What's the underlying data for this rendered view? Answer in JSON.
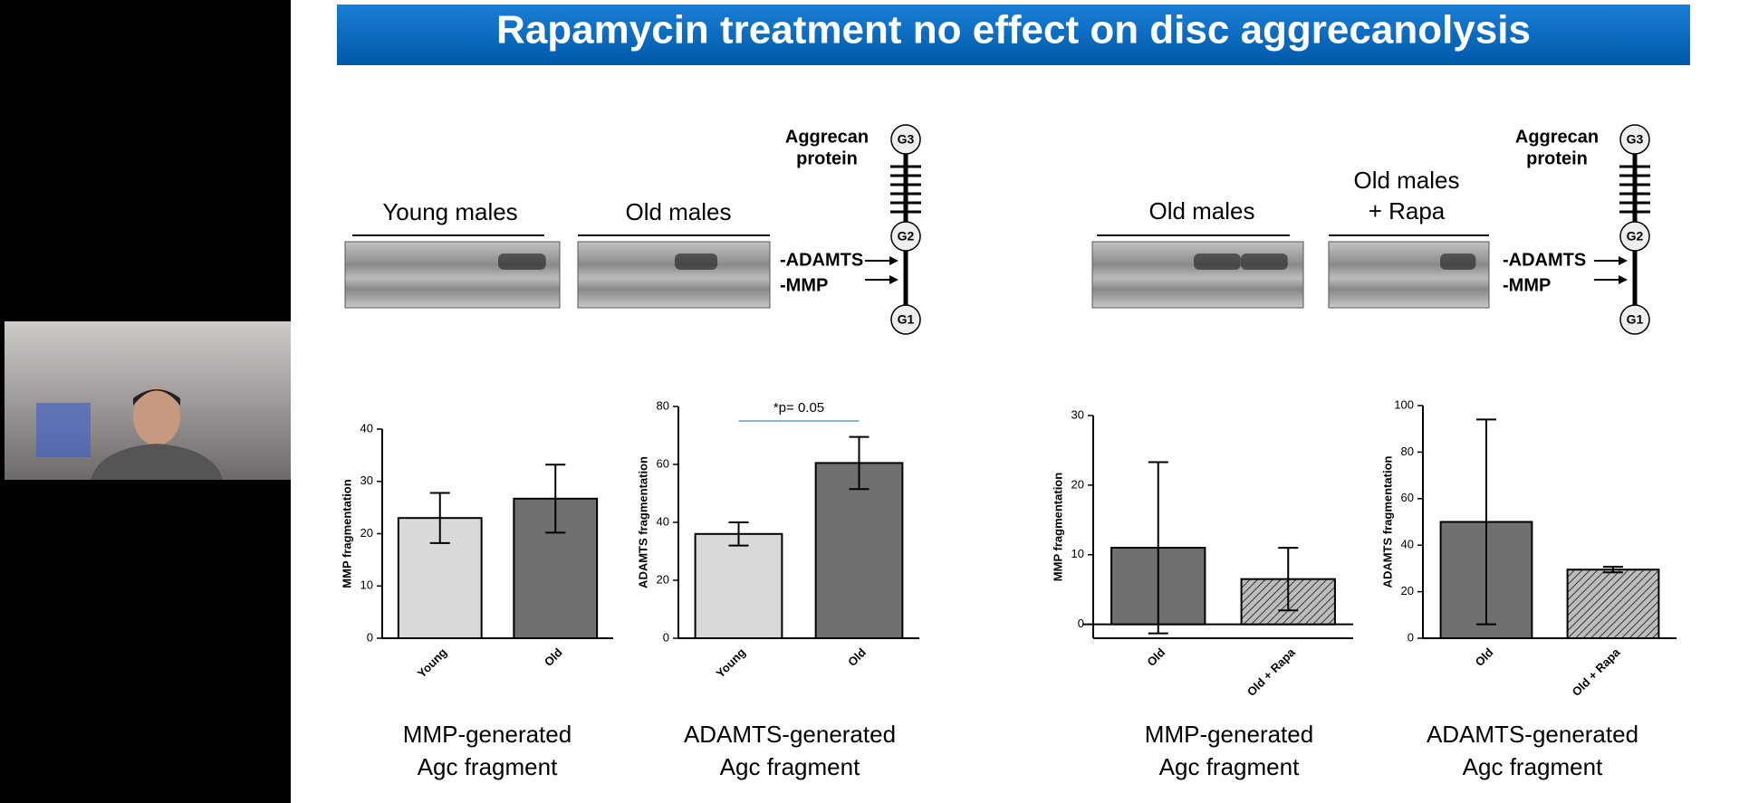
{
  "title": "Rapamycin treatment no effect on disc aggrecanolysis",
  "left_panel": {
    "groups": [
      "Young males",
      "Old males"
    ],
    "bands": [
      "-ADAMTS",
      "-MMP"
    ],
    "protein": [
      "Aggrecan",
      "protein"
    ],
    "domains": [
      "G3",
      "G2",
      "G1"
    ]
  },
  "right_panel": {
    "groups": [
      "Old males",
      "Old males",
      "+ Rapa"
    ],
    "bands": [
      "-ADAMTS",
      "-MMP"
    ],
    "protein": [
      "Aggrecan",
      "protein"
    ],
    "domains": [
      "G3",
      "G2",
      "G1"
    ]
  },
  "chart_data": [
    {
      "type": "bar",
      "ylabel": "MMP fragmentation",
      "categories": [
        "Young",
        "Old"
      ],
      "values": [
        23,
        26.7
      ],
      "errors": [
        4.8,
        6.5
      ],
      "colors": [
        "#d9d9d9",
        "#707070"
      ],
      "hatch": [
        false,
        false
      ],
      "ylim": [
        0,
        40
      ],
      "yticks": [
        0,
        10,
        20,
        30,
        40
      ],
      "caption": [
        "MMP-generated",
        "Agc fragment"
      ]
    },
    {
      "type": "bar",
      "ylabel": "ADAMTS fragmentation",
      "categories": [
        "Young",
        "Old"
      ],
      "values": [
        36,
        60.5
      ],
      "errors": [
        4,
        9
      ],
      "colors": [
        "#d9d9d9",
        "#707070"
      ],
      "hatch": [
        false,
        false
      ],
      "ylim": [
        0,
        80
      ],
      "yticks": [
        0,
        20,
        40,
        60,
        80
      ],
      "annotation": "*p= 0.05",
      "caption": [
        "ADAMTS-generated",
        "Agc fragment"
      ]
    },
    {
      "type": "bar",
      "ylabel": "MMP fragmentation",
      "categories": [
        "Old",
        "Old + Rapa"
      ],
      "values": [
        11,
        6.5
      ],
      "errors": [
        12.3,
        4.5
      ],
      "colors": [
        "#707070",
        "#bdbdbd"
      ],
      "hatch": [
        false,
        true
      ],
      "ylim": [
        -2,
        30
      ],
      "yticks": [
        0,
        10,
        20,
        30
      ],
      "caption": [
        "MMP-generated",
        "Agc fragment"
      ]
    },
    {
      "type": "bar",
      "ylabel": "ADAMTS fragmentation",
      "categories": [
        "Old",
        "Old + Rapa"
      ],
      "values": [
        50,
        29.5
      ],
      "errors": [
        44,
        1.2
      ],
      "colors": [
        "#707070",
        "#bdbdbd"
      ],
      "hatch": [
        false,
        true
      ],
      "ylim": [
        0,
        100
      ],
      "yticks": [
        0,
        20,
        40,
        60,
        80,
        100
      ],
      "caption": [
        "ADAMTS-generated",
        "Agc fragment"
      ]
    }
  ]
}
